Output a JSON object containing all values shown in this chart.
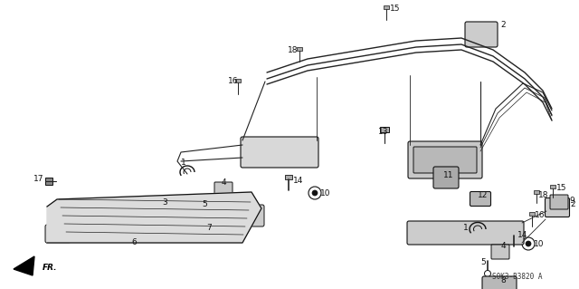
{
  "title": "",
  "bg_color": "#ffffff",
  "diagram_code": "S0K3-B3820 A",
  "fr_label": "FR.",
  "fig_width": 6.4,
  "fig_height": 3.19,
  "dpi": 100
}
